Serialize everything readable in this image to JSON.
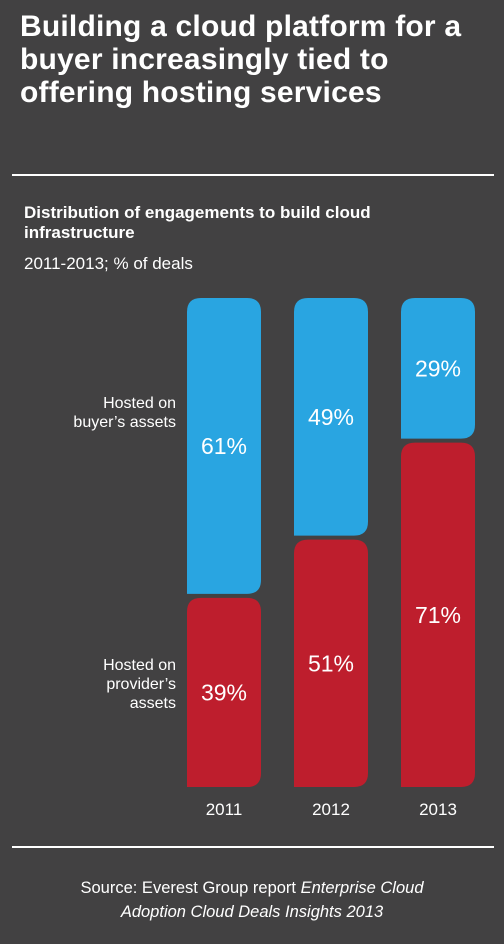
{
  "title": "Building a cloud platform for a buyer increasingly tied to offering hosting services",
  "chart_data": {
    "type": "bar",
    "stacked": true,
    "title": "Distribution of engagements to build cloud infrastructure",
    "subtitle": "2011-2013; % of deals",
    "categories": [
      "2011",
      "2012",
      "2013"
    ],
    "series": [
      {
        "name": "Hosted on buyer’s assets",
        "values": [
          61,
          49,
          29
        ],
        "labels": [
          "61%",
          "49%",
          "29%"
        ],
        "color": "#29a5e1"
      },
      {
        "name": "Hosted on provider’s assets",
        "values": [
          39,
          51,
          71
        ],
        "labels": [
          "39%",
          "51%",
          "71%"
        ],
        "color": "#be1e2d"
      }
    ],
    "ylim": [
      0,
      100
    ]
  },
  "legend": {
    "buyer_lines": [
      "Hosted on",
      "buyer’s assets"
    ],
    "provider_lines": [
      "Hosted on",
      "provider’s",
      "assets"
    ]
  },
  "source": {
    "prefix": "Source: Everest Group report",
    "italic_line1": "Enterprise Cloud",
    "italic_line2": "Adoption Cloud Deals Insights 2013"
  },
  "colors": {
    "background": "#424142",
    "buyer": "#29a5e1",
    "provider": "#be1e2d",
    "text": "#ffffff"
  }
}
